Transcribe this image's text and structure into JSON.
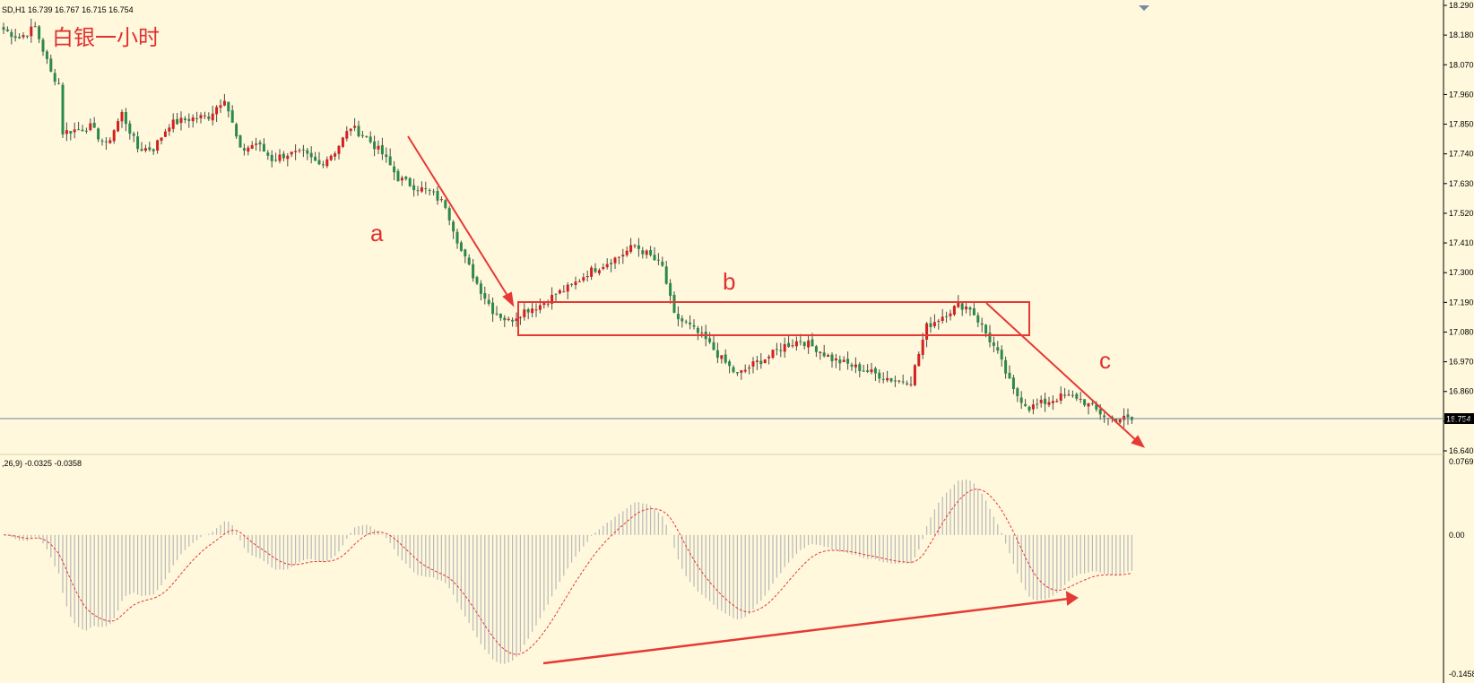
{
  "header": {
    "symbol_info": "SD,H1  16.739 16.767 16.715 16.754",
    "macd_info": ",26,9) -0.0325 -0.0358"
  },
  "annotations": {
    "title": "白银一小时",
    "wave_a": "a",
    "wave_b": "b",
    "wave_c": "c"
  },
  "colors": {
    "background": "#fff8dc",
    "bull": "#d32020",
    "bear": "#2a8a4a",
    "wick": "#4a4a4a",
    "annotation": "#e53935",
    "price_line": "#6b7f9a",
    "macd_hist": "#b8b8b8",
    "macd_signal": "#e53935"
  },
  "chart_data": [
    {
      "type": "candlestick",
      "name": "price",
      "timeframe": "H1",
      "y_ticks": [
        "18.290",
        "18.180",
        "18.070",
        "17.960",
        "17.850",
        "17.740",
        "17.630",
        "17.520",
        "17.410",
        "17.300",
        "17.190",
        "17.080",
        "16.970",
        "16.860",
        "16.750",
        "16.640"
      ],
      "ylim": [
        16.64,
        18.29
      ],
      "current_price": "16.754",
      "grid": false,
      "anchor_closes": [
        [
          0,
          18.2
        ],
        [
          4,
          18.17
        ],
        [
          8,
          18.21
        ],
        [
          12,
          18.04
        ],
        [
          14,
          18.0
        ],
        [
          15,
          17.82
        ],
        [
          22,
          17.84
        ],
        [
          26,
          17.77
        ],
        [
          30,
          17.89
        ],
        [
          34,
          17.76
        ],
        [
          38,
          17.76
        ],
        [
          42,
          17.85
        ],
        [
          47,
          17.87
        ],
        [
          52,
          17.88
        ],
        [
          56,
          17.95
        ],
        [
          60,
          17.75
        ],
        [
          64,
          17.78
        ],
        [
          68,
          17.72
        ],
        [
          72,
          17.74
        ],
        [
          76,
          17.74
        ],
        [
          80,
          17.7
        ],
        [
          84,
          17.75
        ],
        [
          88,
          17.84
        ],
        [
          92,
          17.8
        ],
        [
          96,
          17.74
        ],
        [
          100,
          17.65
        ],
        [
          104,
          17.62
        ],
        [
          108,
          17.6
        ],
        [
          112,
          17.55
        ],
        [
          116,
          17.38
        ],
        [
          120,
          17.26
        ],
        [
          124,
          17.16
        ],
        [
          128,
          17.12
        ],
        [
          132,
          17.16
        ],
        [
          136,
          17.18
        ],
        [
          140,
          17.22
        ],
        [
          144,
          17.25
        ],
        [
          148,
          17.3
        ],
        [
          152,
          17.33
        ],
        [
          156,
          17.36
        ],
        [
          160,
          17.4
        ],
        [
          164,
          17.36
        ],
        [
          167,
          17.32
        ],
        [
          170,
          17.14
        ],
        [
          174,
          17.1
        ],
        [
          178,
          17.05
        ],
        [
          182,
          16.98
        ],
        [
          186,
          16.92
        ],
        [
          190,
          16.96
        ],
        [
          194,
          16.99
        ],
        [
          198,
          17.03
        ],
        [
          202,
          17.05
        ],
        [
          206,
          17.02
        ],
        [
          210,
          16.98
        ],
        [
          214,
          16.96
        ],
        [
          218,
          16.94
        ],
        [
          222,
          16.92
        ],
        [
          226,
          16.9
        ],
        [
          230,
          16.9
        ],
        [
          234,
          17.1
        ],
        [
          238,
          17.14
        ],
        [
          242,
          17.18
        ],
        [
          245,
          17.17
        ],
        [
          248,
          17.1
        ],
        [
          252,
          17.0
        ],
        [
          256,
          16.86
        ],
        [
          260,
          16.8
        ],
        [
          264,
          16.82
        ],
        [
          268,
          16.84
        ],
        [
          272,
          16.84
        ],
        [
          276,
          16.8
        ],
        [
          280,
          16.76
        ],
        [
          284,
          16.76
        ],
        [
          286,
          16.754
        ]
      ]
    },
    {
      "type": "histogram",
      "name": "macd",
      "parameters_visible": "26,9",
      "values": [
        "-0.0325",
        "-0.0358"
      ],
      "y_ticks": [
        "0.0769",
        "0.00",
        "-0.1458"
      ],
      "ylim": [
        -0.1458,
        0.0769
      ]
    }
  ]
}
